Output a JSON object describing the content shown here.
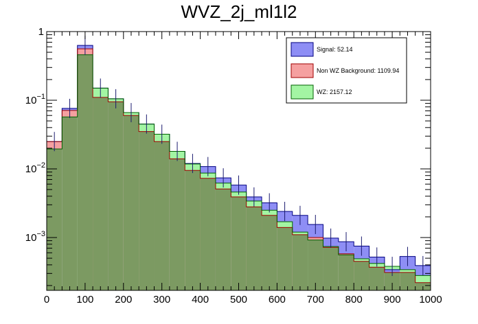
{
  "chart_data": {
    "type": "bar",
    "title": "WVZ_2j_ml1l2",
    "xlabel": "",
    "ylabel": "",
    "xlim": [
      0,
      1000
    ],
    "ylog": true,
    "ylim": [
      0.00017,
      1.0
    ],
    "bin_edges": [
      0,
      40,
      80,
      120,
      160,
      200,
      240,
      280,
      320,
      360,
      400,
      440,
      480,
      520,
      560,
      600,
      640,
      680,
      720,
      760,
      800,
      840,
      880,
      920,
      960,
      1000
    ],
    "x_ticks": [
      "0",
      "100",
      "200",
      "300",
      "400",
      "500",
      "600",
      "700",
      "800",
      "900",
      "1000"
    ],
    "y_ticks": [
      {
        "base": "1",
        "exp": ""
      },
      {
        "base": "10",
        "exp": "−1"
      },
      {
        "base": "10",
        "exp": "−2"
      },
      {
        "base": "10",
        "exp": "−3"
      }
    ],
    "series": [
      {
        "name": "Signal",
        "legend_label": "Signal: 52.14",
        "color": "#8e8ef5",
        "values": [
          0.025,
          0.076,
          0.63,
          0.15,
          0.105,
          0.066,
          0.045,
          0.032,
          0.018,
          0.012,
          0.0108,
          0.0074,
          0.0058,
          0.0039,
          0.0032,
          0.0024,
          0.0021,
          0.00155,
          0.00098,
          0.00087,
          0.00075,
          0.00052,
          0.00034,
          0.00053,
          0.00039
        ]
      },
      {
        "name": "Non WZ Background",
        "legend_label": "Non WZ Background: 1109.94",
        "color": "#f5a0a0",
        "values": [
          0.025,
          0.071,
          0.56,
          0.11,
          0.095,
          0.06,
          0.035,
          0.025,
          0.014,
          0.0095,
          0.0073,
          0.0051,
          0.0039,
          0.0028,
          0.0021,
          0.0014,
          0.0011,
          0.001,
          0.00072,
          0.00058,
          0.00045,
          0.00037,
          0.00031,
          0.00031,
          0.00022
        ]
      },
      {
        "name": "WZ",
        "legend_label": "WZ: 2157.12",
        "color": "#a3f5a3",
        "values": [
          0.0195,
          0.057,
          0.46,
          0.15,
          0.105,
          0.066,
          0.045,
          0.032,
          0.018,
          0.0118,
          0.0087,
          0.0062,
          0.0046,
          0.0034,
          0.0025,
          0.0017,
          0.0012,
          0.00092,
          0.00074,
          0.00056,
          0.00049,
          0.00042,
          0.00038,
          0.00034,
          0.00028
        ]
      }
    ],
    "overlap_color": "#7c9a62",
    "frame_color": "#000000",
    "error_bar_color": "#1a1a6e"
  }
}
